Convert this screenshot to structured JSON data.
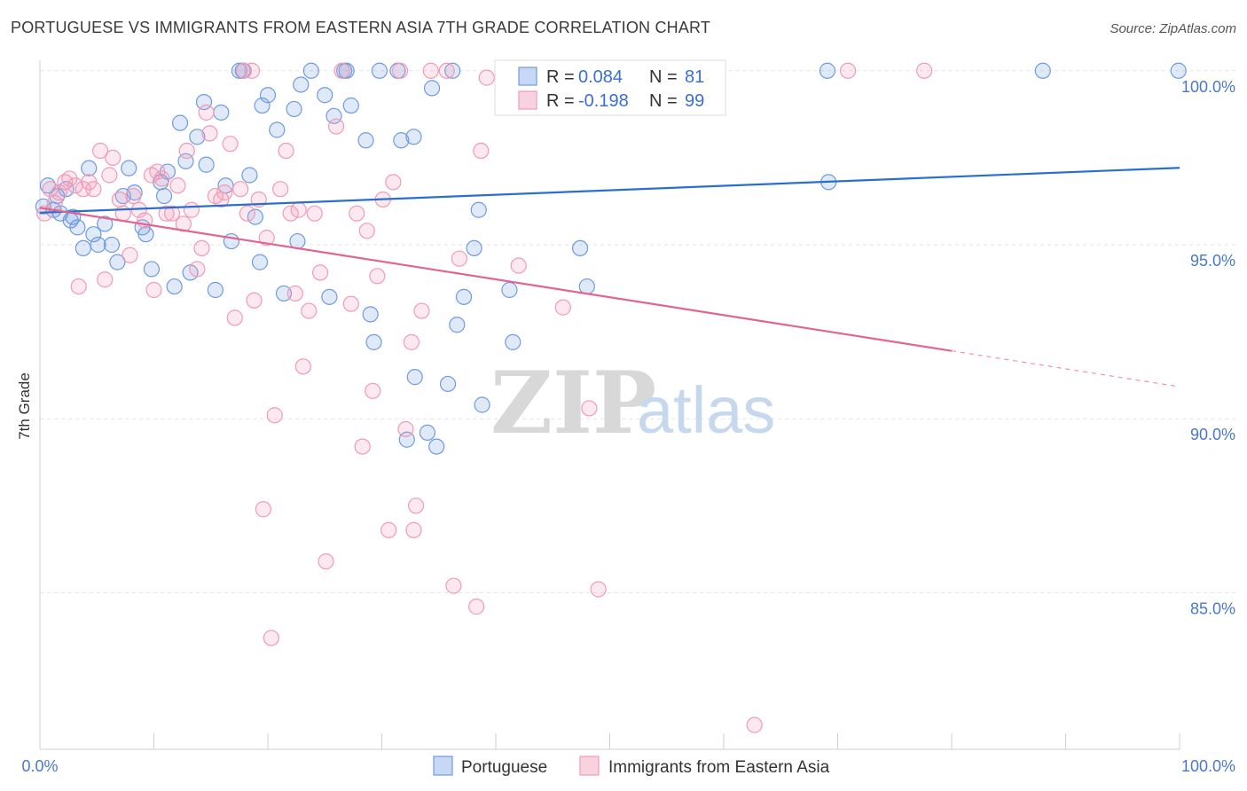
{
  "title": "PORTUGUESE VS IMMIGRANTS FROM EASTERN ASIA 7TH GRADE CORRELATION CHART",
  "source": "Source: ZipAtlas.com",
  "watermark": {
    "zip": "ZIP",
    "atlas": "atlas"
  },
  "legend": {
    "r_label": "R =",
    "n_label": "N =",
    "rows": [
      {
        "r": "0.084",
        "n": "81"
      },
      {
        "r": "-0.198",
        "n": "99"
      }
    ]
  },
  "chart_data": {
    "type": "scatter",
    "xlabel": "",
    "ylabel": "7th Grade",
    "xlim": [
      0,
      100
    ],
    "ylim": [
      80.5,
      100.3
    ],
    "x_tick_labels": [
      "0.0%",
      "100.0%"
    ],
    "y_ticks": [
      {
        "value": 100,
        "label": "100.0%"
      },
      {
        "value": 95,
        "label": "95.0%"
      },
      {
        "value": 90,
        "label": "90.0%"
      },
      {
        "value": 85,
        "label": "85.0%"
      }
    ],
    "grid": true,
    "legend_position": "top-center",
    "series": [
      {
        "name": "Portuguese",
        "color": "#6f9be0",
        "line_color": "#2a6fd0",
        "trend": {
          "x": [
            0,
            100
          ],
          "y": [
            95.92,
            97.21
          ]
        },
        "points": [
          [
            0.3,
            96.1
          ],
          [
            0.7,
            96.7
          ],
          [
            1.2,
            96.0
          ],
          [
            1.5,
            96.4
          ],
          [
            1.8,
            95.9
          ],
          [
            2.3,
            96.6
          ],
          [
            2.7,
            95.7
          ],
          [
            2.9,
            95.8
          ],
          [
            3.3,
            95.5
          ],
          [
            3.8,
            94.9
          ],
          [
            4.3,
            97.2
          ],
          [
            4.7,
            95.3
          ],
          [
            5.1,
            95.0
          ],
          [
            5.7,
            95.6
          ],
          [
            6.3,
            95.0
          ],
          [
            6.8,
            94.5
          ],
          [
            7.3,
            96.4
          ],
          [
            7.8,
            97.2
          ],
          [
            8.3,
            96.5
          ],
          [
            9.0,
            95.5
          ],
          [
            9.3,
            95.3
          ],
          [
            9.8,
            94.3
          ],
          [
            10.6,
            96.8
          ],
          [
            10.9,
            96.4
          ],
          [
            11.2,
            97.1
          ],
          [
            11.8,
            93.8
          ],
          [
            12.3,
            98.5
          ],
          [
            12.8,
            97.4
          ],
          [
            13.2,
            94.2
          ],
          [
            13.8,
            98.1
          ],
          [
            14.4,
            99.1
          ],
          [
            14.6,
            97.3
          ],
          [
            15.4,
            93.7
          ],
          [
            15.9,
            98.8
          ],
          [
            16.3,
            96.7
          ],
          [
            16.8,
            95.1
          ],
          [
            17.5,
            100.0
          ],
          [
            17.8,
            100.0
          ],
          [
            18.4,
            97.0
          ],
          [
            18.9,
            95.8
          ],
          [
            19.3,
            94.5
          ],
          [
            19.5,
            99.0
          ],
          [
            20.0,
            99.3
          ],
          [
            20.8,
            98.3
          ],
          [
            21.4,
            93.6
          ],
          [
            22.3,
            98.9
          ],
          [
            22.6,
            95.1
          ],
          [
            22.9,
            99.6
          ],
          [
            23.8,
            100.0
          ],
          [
            25.0,
            99.3
          ],
          [
            25.4,
            93.5
          ],
          [
            25.8,
            98.7
          ],
          [
            26.7,
            100.0
          ],
          [
            26.9,
            100.0
          ],
          [
            27.3,
            99.0
          ],
          [
            28.6,
            98.0
          ],
          [
            29.0,
            93.0
          ],
          [
            29.3,
            92.2
          ],
          [
            29.8,
            100.0
          ],
          [
            31.4,
            100.0
          ],
          [
            31.7,
            98.0
          ],
          [
            32.2,
            89.4
          ],
          [
            32.8,
            98.1
          ],
          [
            32.9,
            91.2
          ],
          [
            34.0,
            89.6
          ],
          [
            34.4,
            99.5
          ],
          [
            34.8,
            89.2
          ],
          [
            35.8,
            91.0
          ],
          [
            36.2,
            100.0
          ],
          [
            36.6,
            92.7
          ],
          [
            37.2,
            93.5
          ],
          [
            38.1,
            94.9
          ],
          [
            38.5,
            96.0
          ],
          [
            38.8,
            90.4
          ],
          [
            41.2,
            93.7
          ],
          [
            41.5,
            92.2
          ],
          [
            43.5,
            100.0
          ],
          [
            47.4,
            94.9
          ],
          [
            48.0,
            93.8
          ],
          [
            50.8,
            100.0
          ],
          [
            69.1,
            100.0
          ],
          [
            69.2,
            96.8
          ],
          [
            88.0,
            100.0
          ],
          [
            99.9,
            100.0
          ]
        ]
      },
      {
        "name": "Immigrants from Eastern Asia",
        "color": "#f09ab8",
        "line_color": "#e3648e",
        "trend": {
          "x": [
            0,
            80
          ],
          "y": [
            96.06,
            91.95
          ]
        },
        "trend_dashed": {
          "x": [
            80,
            100
          ],
          "y": [
            91.95,
            90.92
          ]
        },
        "points": [
          [
            0.4,
            95.9
          ],
          [
            0.9,
            96.6
          ],
          [
            1.3,
            96.2
          ],
          [
            1.7,
            96.5
          ],
          [
            2.2,
            96.8
          ],
          [
            2.6,
            96.9
          ],
          [
            3.1,
            96.7
          ],
          [
            3.4,
            93.8
          ],
          [
            3.8,
            96.6
          ],
          [
            4.3,
            96.8
          ],
          [
            4.7,
            96.6
          ],
          [
            5.3,
            97.7
          ],
          [
            5.7,
            94.0
          ],
          [
            6.1,
            97.0
          ],
          [
            6.4,
            97.5
          ],
          [
            7.0,
            96.3
          ],
          [
            7.3,
            95.9
          ],
          [
            7.9,
            94.7
          ],
          [
            8.2,
            96.4
          ],
          [
            8.7,
            96.0
          ],
          [
            9.2,
            95.7
          ],
          [
            9.8,
            97.0
          ],
          [
            10.0,
            93.7
          ],
          [
            10.3,
            97.1
          ],
          [
            10.7,
            96.9
          ],
          [
            11.1,
            95.9
          ],
          [
            11.6,
            95.9
          ],
          [
            12.1,
            96.7
          ],
          [
            12.6,
            95.6
          ],
          [
            12.9,
            97.7
          ],
          [
            13.3,
            96.0
          ],
          [
            13.8,
            94.3
          ],
          [
            14.2,
            94.9
          ],
          [
            14.6,
            98.8
          ],
          [
            14.9,
            98.2
          ],
          [
            15.4,
            96.4
          ],
          [
            15.9,
            96.3
          ],
          [
            16.2,
            96.5
          ],
          [
            16.7,
            97.9
          ],
          [
            17.1,
            92.9
          ],
          [
            17.6,
            96.6
          ],
          [
            17.9,
            100.0
          ],
          [
            18.2,
            95.9
          ],
          [
            18.6,
            100.0
          ],
          [
            18.8,
            93.4
          ],
          [
            19.2,
            96.3
          ],
          [
            19.6,
            87.4
          ],
          [
            19.9,
            95.2
          ],
          [
            20.3,
            83.7
          ],
          [
            20.6,
            90.1
          ],
          [
            21.1,
            96.6
          ],
          [
            21.6,
            97.7
          ],
          [
            22.0,
            95.9
          ],
          [
            22.4,
            93.6
          ],
          [
            22.7,
            96.0
          ],
          [
            23.1,
            91.5
          ],
          [
            23.6,
            93.1
          ],
          [
            24.1,
            95.9
          ],
          [
            24.6,
            94.2
          ],
          [
            25.1,
            85.9
          ],
          [
            26.0,
            98.4
          ],
          [
            26.5,
            100.0
          ],
          [
            27.3,
            93.3
          ],
          [
            27.8,
            95.9
          ],
          [
            28.3,
            89.2
          ],
          [
            28.7,
            95.4
          ],
          [
            29.2,
            90.8
          ],
          [
            29.6,
            94.1
          ],
          [
            30.1,
            96.3
          ],
          [
            30.6,
            86.8
          ],
          [
            31.0,
            96.8
          ],
          [
            31.6,
            100.0
          ],
          [
            32.1,
            89.7
          ],
          [
            32.6,
            92.2
          ],
          [
            32.8,
            86.8
          ],
          [
            33.0,
            87.5
          ],
          [
            33.5,
            93.1
          ],
          [
            34.3,
            100.0
          ],
          [
            35.7,
            100.0
          ],
          [
            36.3,
            85.2
          ],
          [
            36.8,
            94.6
          ],
          [
            38.3,
            84.6
          ],
          [
            38.7,
            97.7
          ],
          [
            39.2,
            99.8
          ],
          [
            40.9,
            100.0
          ],
          [
            42.0,
            94.4
          ],
          [
            44.4,
            100.0
          ],
          [
            45.9,
            93.2
          ],
          [
            48.2,
            90.3
          ],
          [
            49.0,
            85.1
          ],
          [
            50.1,
            100.0
          ],
          [
            62.7,
            81.2
          ],
          [
            70.9,
            100.0
          ],
          [
            77.6,
            100.0
          ]
        ]
      }
    ]
  }
}
